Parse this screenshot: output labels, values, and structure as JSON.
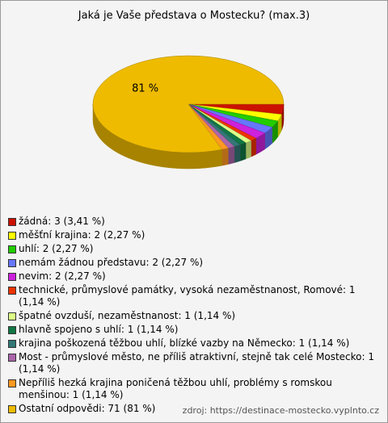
{
  "chart_data": {
    "type": "pie",
    "title": "Jaká je Vaše představa o Mostecku? (max.3)",
    "categories": [
      "žádná: 3 (3,41 %)",
      "měšťní krajina: 2 (2,27 %)",
      "uhlí: 2 (2,27 %)",
      "nemám žádnou představu: 2 (2,27 %)",
      "nevim: 2 (2,27 %)",
      "technické, průmyslové památky, vysoká nezaměstnanost, Romové: 1 (1,14 %)",
      "špatné ovzduší, nezaměstnanost: 1 (1,14 %)",
      "hlavně spojeno s uhlí: 1 (1,14 %)",
      "krajina poškozená těžbou uhlí, blízké vazby na Německo: 1 (1,14 %)",
      "Most - průmyslové město, ne příliš atraktivní, stejně tak celé Mostecko: 1 (1,14 %)",
      "Nepříliš hezká krajina poničená těžbou uhlí, problémy s romskou menšinou: 1 (1,14 %)",
      "Ostatní odpovědi: 71 (81 %)"
    ],
    "values": [
      3.41,
      2.27,
      2.27,
      2.27,
      2.27,
      1.14,
      1.14,
      1.14,
      1.14,
      1.14,
      1.14,
      81
    ],
    "value_labels": [
      null,
      null,
      null,
      null,
      null,
      null,
      null,
      null,
      null,
      null,
      null,
      "81 %"
    ],
    "colors": [
      "#cc1100",
      "#ffff00",
      "#22cc00",
      "#6677ff",
      "#cc22dd",
      "#ee3300",
      "#ddff88",
      "#117744",
      "#337777",
      "#aa66aa",
      "#ff9922",
      "#eebb00"
    ],
    "source": "zdroj: https://destinace-mostecko.vyplnto.cz"
  }
}
